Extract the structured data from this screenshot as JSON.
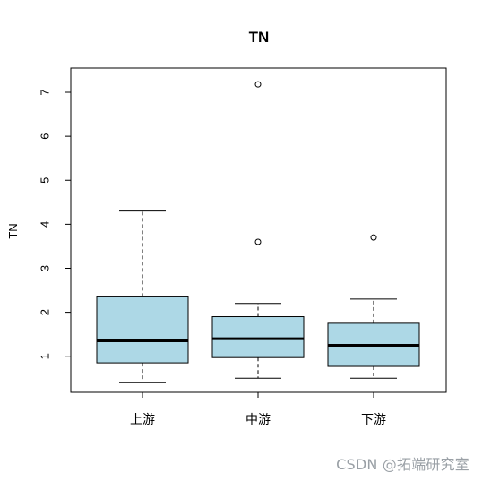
{
  "watermark": "CSDN @拓端研究室",
  "chart_data": {
    "type": "boxplot",
    "title": "TN",
    "ylabel": "TN",
    "xlabel": "",
    "ylim": [
      0.18,
      7.55
    ],
    "yticks": [
      1,
      2,
      3,
      4,
      5,
      6,
      7
    ],
    "categories": [
      "上游",
      "中游",
      "下游"
    ],
    "series": [
      {
        "category": "上游",
        "whisker_low": 0.4,
        "q1": 0.85,
        "median": 1.35,
        "q3": 2.35,
        "whisker_high": 4.3,
        "outliers": []
      },
      {
        "category": "中游",
        "whisker_low": 0.5,
        "q1": 0.97,
        "median": 1.4,
        "q3": 1.9,
        "whisker_high": 2.2,
        "outliers": [
          3.6,
          7.18
        ]
      },
      {
        "category": "下游",
        "whisker_low": 0.5,
        "q1": 0.77,
        "median": 1.25,
        "q3": 1.75,
        "whisker_high": 2.3,
        "outliers": [
          3.7
        ]
      }
    ],
    "box_color": "#add8e6",
    "grid": false,
    "legend": "none"
  }
}
